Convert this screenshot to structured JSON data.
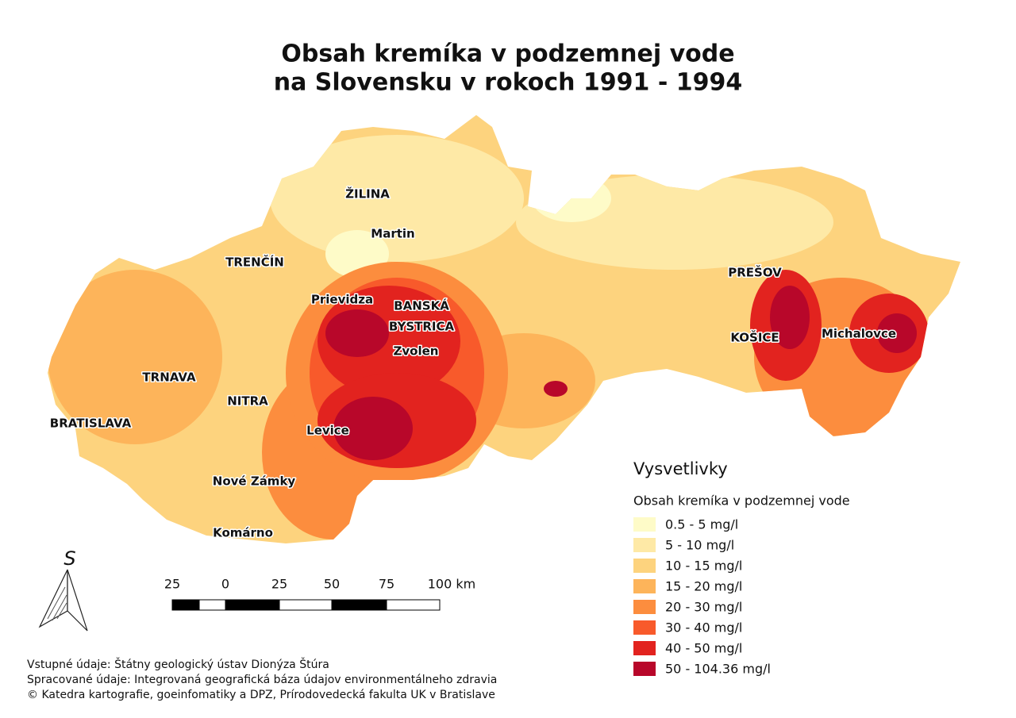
{
  "title": [
    "Obsah kremíka v podzemnej vode",
    "na Slovensku v rokoch 1991 - 1994"
  ],
  "cities": [
    "ŽILINA",
    "Martin",
    "TRENČÍN",
    "Prievidza",
    "BANSKÁ",
    "BYSTRICA",
    "Zvolen",
    "PREŠOV",
    "KOŠICE",
    "Michalovce",
    "TRNAVA",
    "NITRA",
    "BRATISLAVA",
    "Levice",
    "Nové Zámky",
    "Komárno"
  ],
  "legend": {
    "title": "Vysvetlivky",
    "subtitle": "Obsah kremíka v podzemnej vode",
    "items": [
      {
        "label": "0.5 - 5 mg/l",
        "color": "#fefbc8"
      },
      {
        "label": "5 - 10 mg/l",
        "color": "#fee9a6"
      },
      {
        "label": "10 - 15 mg/l",
        "color": "#fdd37e"
      },
      {
        "label": "15 - 20 mg/l",
        "color": "#fdb45a"
      },
      {
        "label": "20 - 30 mg/l",
        "color": "#fc8d3e"
      },
      {
        "label": "30 - 40 mg/l",
        "color": "#f85a2b"
      },
      {
        "label": "40 - 50 mg/l",
        "color": "#e2231f"
      },
      {
        "label": "50 - 104.36 mg/l",
        "color": "#b8072a"
      }
    ]
  },
  "north_arrow": "S",
  "scale_bar": [
    "25",
    "0",
    "25",
    "50",
    "75",
    "100 km"
  ],
  "credits": [
    "Vstupné údaje: Štátny geologický ústav Dionýza Štúra",
    "Spracované údaje: Integrovaná geografická báza údajov environmentálneho zdravia",
    "© Katedra kartografie, goeinfomatiky a DPZ, Prírodovedecká fakulta UK v Bratislave"
  ]
}
